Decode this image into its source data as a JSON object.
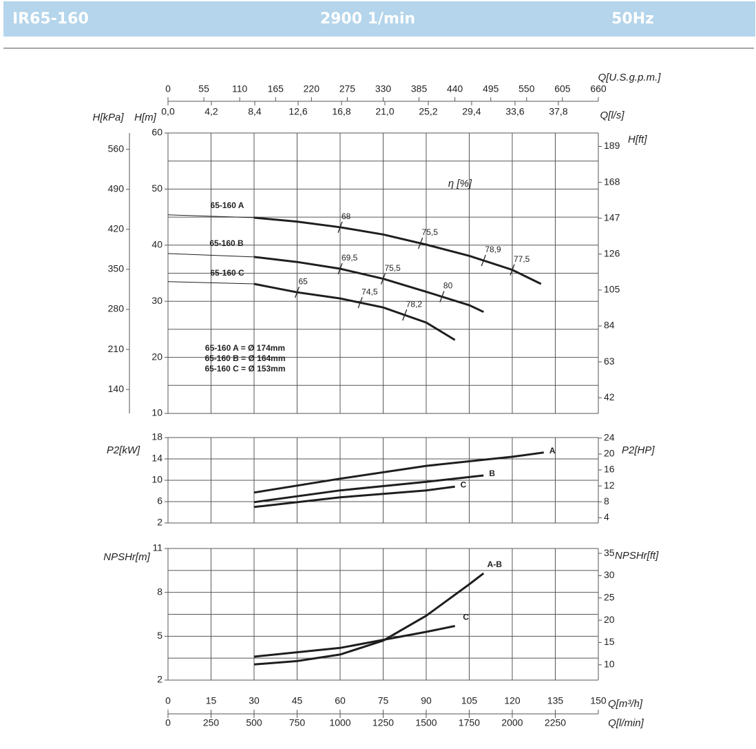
{
  "header": {
    "model": "IR65-160",
    "speed": "2900 1/min",
    "frequency": "50Hz"
  },
  "chart_data": [
    {
      "type": "line",
      "xlim": [
        0,
        150
      ],
      "xticks": [
        0,
        15,
        30,
        45,
        60,
        75,
        90,
        105,
        120,
        135,
        150
      ],
      "x_top": [
        {
          "label": "Q[U.S.g.p.m.]",
          "lim": [
            0,
            660
          ],
          "ticks": [
            0,
            55,
            110,
            165,
            220,
            275,
            330,
            385,
            440,
            495,
            550,
            605,
            660
          ]
        },
        {
          "label": "Q[l/s]",
          "lim": [
            0,
            41.667
          ],
          "ticks": [
            {
              "value": 0,
              "label": "0,0"
            },
            {
              "value": 4.2,
              "label": "4,2"
            },
            {
              "value": 8.4,
              "label": "8,4"
            },
            {
              "value": 12.6,
              "label": "12,6"
            },
            {
              "value": 16.8,
              "label": "16,8"
            },
            {
              "value": 21,
              "label": "21,0"
            },
            {
              "value": 25.2,
              "label": "25,2"
            },
            {
              "value": 29.4,
              "label": "29,4"
            },
            {
              "value": 33.6,
              "label": "33,6"
            },
            {
              "value": 37.8,
              "label": "37,8"
            }
          ]
        }
      ],
      "ylabel": "H[m]",
      "ylim": [
        10,
        60
      ],
      "yticks": [
        10,
        20,
        30,
        40,
        50,
        60
      ],
      "ygrid": [
        15,
        25,
        35,
        45,
        55
      ],
      "y2label": "H[ft]",
      "y2lim": [
        32.81,
        196.85
      ],
      "y2ticks": [
        42,
        63,
        84,
        105,
        126,
        147,
        168,
        189
      ],
      "y3label": "H[kPa]",
      "y3lim": [
        98.07,
        588.4
      ],
      "y3ticks": [
        140,
        210,
        280,
        350,
        420,
        490,
        560
      ],
      "efficiency_label": "η [%]",
      "series": [
        {
          "name": "65-160 A",
          "color": "#1e1e1e",
          "x": [
            0,
            30,
            45,
            60,
            75,
            90,
            105,
            120,
            130
          ],
          "values": [
            45.4,
            44.9,
            44.2,
            43.2,
            41.9,
            40.1,
            38.1,
            35.6,
            33.1
          ],
          "efficiency": [
            {
              "q": 60,
              "label": "68"
            },
            {
              "q": 88,
              "label": "75,5"
            },
            {
              "q": 110,
              "label": "78,9"
            },
            {
              "q": 120,
              "label": "77,5"
            }
          ]
        },
        {
          "name": "65-160 B",
          "color": "#1e1e1e",
          "x": [
            0,
            30,
            45,
            60,
            75,
            90,
            105,
            110
          ],
          "values": [
            38.5,
            37.9,
            37.0,
            35.8,
            34.0,
            31.7,
            29.3,
            28.1
          ],
          "efficiency": [
            {
              "q": 60,
              "label": "69,5"
            },
            {
              "q": 75,
              "label": "75,5"
            },
            {
              "q": 95.5,
              "label": "80"
            }
          ]
        },
        {
          "name": "65-160 C",
          "color": "#1e1e1e",
          "x": [
            0,
            30,
            45,
            60,
            75,
            90,
            100
          ],
          "values": [
            33.5,
            33.1,
            31.6,
            30.5,
            28.9,
            26.2,
            23.1
          ],
          "efficiency": [
            {
              "q": 45,
              "label": "65"
            },
            {
              "q": 67,
              "label": "74,5"
            },
            {
              "q": 82.5,
              "label": "78,2"
            }
          ]
        }
      ],
      "notes": [
        "65-160 A = Ø 174mm",
        "65-160 B = Ø 164mm",
        "65-160 C = Ø 153mm"
      ]
    },
    {
      "type": "line",
      "xlim": [
        0,
        150
      ],
      "xticks": [
        0,
        15,
        30,
        45,
        60,
        75,
        90,
        105,
        120,
        135,
        150
      ],
      "ylabel": "P2[kW]",
      "ylim": [
        2,
        18
      ],
      "yticks": [
        2,
        6,
        10,
        14,
        18
      ],
      "y2label": "P2[HP]",
      "y2lim": [
        2.682,
        24.14
      ],
      "y2ticks": [
        4,
        8,
        12,
        16,
        20,
        24
      ],
      "series": [
        {
          "name": "A",
          "color": "#1e1e1e",
          "x": [
            30,
            60,
            90,
            120,
            131
          ],
          "values": [
            7.7,
            10.3,
            12.7,
            14.4,
            15.2
          ]
        },
        {
          "name": "B",
          "color": "#1e1e1e",
          "x": [
            30,
            60,
            90,
            110
          ],
          "values": [
            5.9,
            8.1,
            9.7,
            10.9
          ]
        },
        {
          "name": "C",
          "color": "#1e1e1e",
          "x": [
            30,
            60,
            90,
            100
          ],
          "values": [
            5.0,
            6.8,
            8.1,
            8.8
          ]
        }
      ]
    },
    {
      "type": "line",
      "xlabel": "Q[m³/h]",
      "xlim": [
        0,
        150
      ],
      "xticks": [
        0,
        15,
        30,
        45,
        60,
        75,
        90,
        105,
        120,
        135,
        150
      ],
      "x2": {
        "label": "Q[l/min]",
        "lim": [
          0,
          2500
        ],
        "ticks": [
          0,
          250,
          500,
          750,
          1000,
          1250,
          1500,
          1750,
          2000,
          2250
        ]
      },
      "ylabel": "NPSHr[m]",
      "ylim": [
        2,
        11
      ],
      "yticks": [
        2,
        5,
        8,
        11
      ],
      "ygrid": [
        3.5,
        6.5,
        9.5
      ],
      "y2label": "NPSHr[ft]",
      "y2lim": [
        6.56,
        36.09
      ],
      "y2ticks": [
        10,
        15,
        20,
        25,
        30,
        35
      ],
      "series": [
        {
          "name": "A-B",
          "color": "#1e1e1e",
          "x": [
            30,
            45,
            60,
            75,
            90,
            105,
            110
          ],
          "values": [
            3.07,
            3.3,
            3.75,
            4.7,
            6.4,
            8.55,
            9.3
          ]
        },
        {
          "name": "C",
          "color": "#1e1e1e",
          "x": [
            30,
            60,
            75,
            90,
            100
          ],
          "values": [
            3.6,
            4.2,
            4.75,
            5.3,
            5.7
          ]
        }
      ]
    }
  ]
}
